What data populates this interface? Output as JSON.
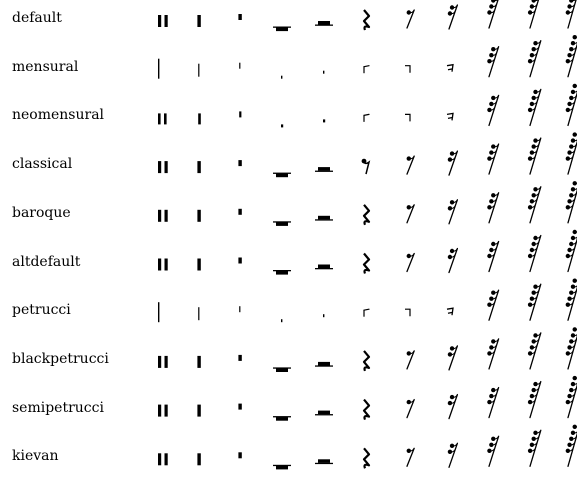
{
  "styles": [
    {
      "name": "default",
      "glyph": "modern"
    },
    {
      "name": "mensural",
      "glyph": "mensural"
    },
    {
      "name": "neomensural",
      "glyph": "neomensural"
    },
    {
      "name": "classical",
      "glyph": "classical"
    },
    {
      "name": "baroque",
      "glyph": "modern"
    },
    {
      "name": "altdefault",
      "glyph": "modern"
    },
    {
      "name": "petrucci",
      "glyph": "mensural"
    },
    {
      "name": "blackpetrucci",
      "glyph": "modern"
    },
    {
      "name": "semipetrucci",
      "glyph": "modern"
    },
    {
      "name": "kievan",
      "glyph": "modern"
    }
  ],
  "durations": [
    "maxima",
    "longa",
    "breve",
    "whole",
    "half",
    "quarter",
    "8th",
    "16th",
    "32nd",
    "64th",
    "128th"
  ],
  "colors": {
    "ink": "#000000",
    "background": "#ffffff"
  }
}
